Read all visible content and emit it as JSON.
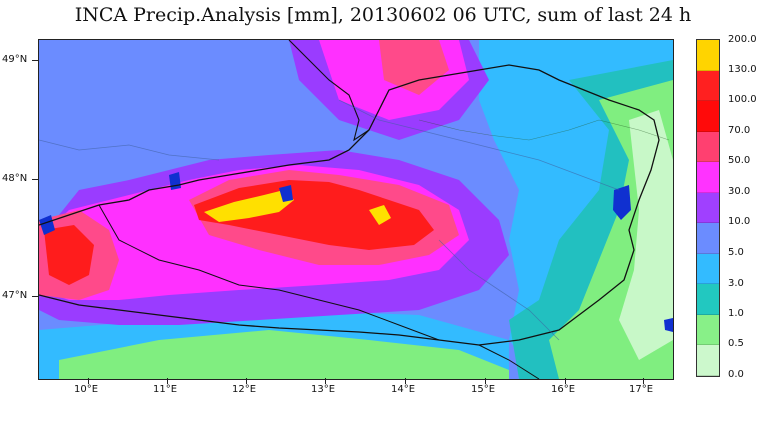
{
  "title": "INCA Precip.Analysis [mm], 20130602 06 UTC, sum of last 24 h",
  "axes": {
    "lat_labels": [
      "49°N",
      "48°N",
      "47°N"
    ],
    "lon_labels": [
      "10°E",
      "11°E",
      "12°E",
      "13°E",
      "14°E",
      "15°E",
      "16°E",
      "17°E"
    ]
  },
  "legend": {
    "labels": [
      "200.0",
      "130.0",
      "100.0",
      "70.0",
      "50.0",
      "30.0",
      "10.0",
      "5.0",
      "3.0",
      "1.0",
      "0.5",
      "0.0"
    ],
    "colors": [
      "#ffd400",
      "#ff2020",
      "#ff0a0a",
      "#ff4070",
      "#ff33ff",
      "#a040ff",
      "#6b8cff",
      "#33bbff",
      "#22c8c0",
      "#88f088",
      "#ccf8cc",
      "#ffffff"
    ]
  },
  "map": {
    "colors": {
      "base": "#6b8cff",
      "violet": "#9a3cff",
      "magenta": "#ff30ff",
      "pink": "#ff4a8a",
      "red": "#ff1c1c",
      "yellow": "#ffe000",
      "cyan": "#33bbff",
      "teal": "#22c0c0",
      "green": "#80ee80",
      "lightgreen": "#c8f8c8",
      "white": "#f4fff4",
      "lake": "#1030d0",
      "border": "#111111",
      "river": "#4060a0"
    }
  }
}
